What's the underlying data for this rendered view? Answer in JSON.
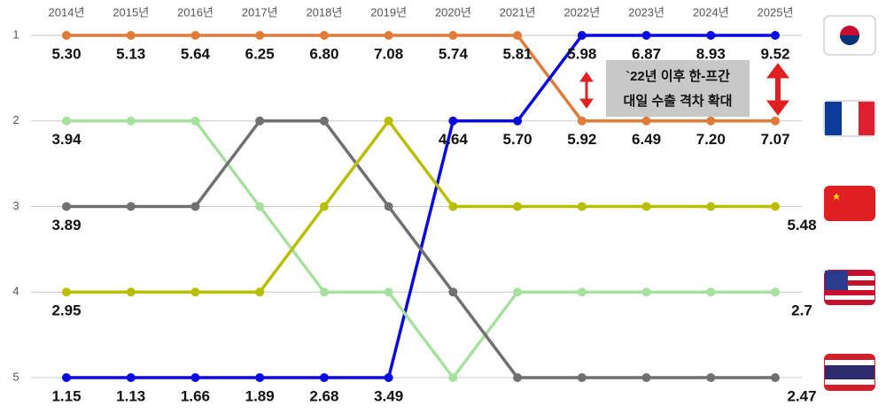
{
  "chart_data": {
    "type": "line",
    "x": [
      "2014년",
      "2015년",
      "2016년",
      "2017년",
      "2018년",
      "2019년",
      "2020년",
      "2021년",
      "2022년",
      "2023년",
      "2024년",
      "2025년"
    ],
    "ylim": [
      5,
      1
    ],
    "yticks": [
      1,
      2,
      3,
      4,
      5
    ],
    "grid": true,
    "annotation": [
      "`22년 이후 한-프간",
      "대일 수출 격차 확대"
    ],
    "series": [
      {
        "color": "#e07b39",
        "values": [
          1,
          1,
          1,
          1,
          1,
          1,
          1,
          1,
          2,
          2,
          2,
          2
        ],
        "data_labels": [
          "5.30",
          "5.13",
          "5.64",
          "6.25",
          "6.80",
          "7.08",
          "5.74",
          "5.81",
          "5.92",
          "6.49",
          "7.20",
          "7.07"
        ]
      },
      {
        "color": "#0a0ae0",
        "values": [
          5,
          5,
          5,
          5,
          5,
          5,
          2,
          2,
          1,
          1,
          1,
          1
        ],
        "data_labels": [
          "1.15",
          "1.13",
          "1.66",
          "1.89",
          "2.68",
          "3.49",
          "4.64",
          "5.70",
          "5.98",
          "6.87",
          "8.93",
          "9.52"
        ]
      },
      {
        "color": "#a8e0a0",
        "values": [
          2,
          2,
          2,
          3,
          4,
          4,
          5,
          4,
          4,
          4,
          4,
          4
        ],
        "data_labels": [
          "3.94",
          null,
          null,
          null,
          null,
          null,
          null,
          null,
          null,
          null,
          null,
          "2.7"
        ]
      },
      {
        "color": "#707070",
        "values": [
          3,
          3,
          3,
          2,
          2,
          3,
          4,
          5,
          5,
          5,
          5,
          5
        ],
        "data_labels": [
          "3.89",
          null,
          null,
          null,
          null,
          null,
          null,
          null,
          null,
          null,
          null,
          "2.47"
        ]
      },
      {
        "color": "#b8bf00",
        "values": [
          4,
          4,
          4,
          4,
          3,
          2,
          3,
          3,
          3,
          3,
          3,
          3
        ],
        "data_labels": [
          "2.95",
          null,
          null,
          null,
          null,
          null,
          null,
          null,
          null,
          null,
          null,
          "5.48"
        ]
      }
    ]
  }
}
